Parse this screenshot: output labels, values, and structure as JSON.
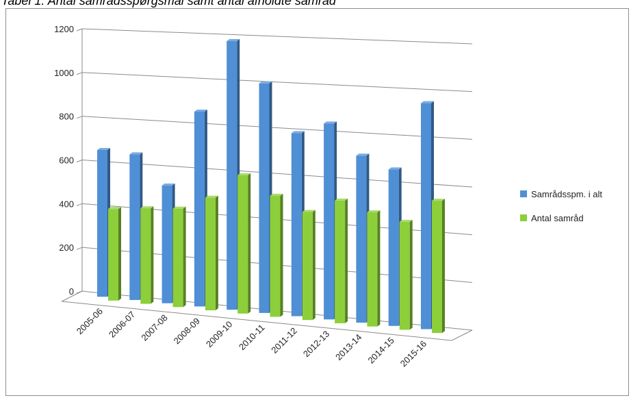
{
  "page": {
    "title": "Tabel 1: Antal samrådsspørgsmål samt antal afholdte samråd"
  },
  "chart_data": {
    "type": "bar",
    "title": "",
    "xlabel": "",
    "ylabel": "",
    "ylim": [
      0,
      1200
    ],
    "yticks": [
      0,
      200,
      400,
      600,
      800,
      1000,
      1200
    ],
    "grid": true,
    "legend_position": "right",
    "categories": [
      "2005-06",
      "2006-07",
      "2007-08",
      "2008-09",
      "2009-10",
      "2010-11",
      "2011-12",
      "2012-13",
      "2013-14",
      "2014-15",
      "2015-16"
    ],
    "series": [
      {
        "name": "Samrådsspm. i alt",
        "color": "#4f8fd6",
        "values": [
          650,
          640,
          510,
          850,
          1170,
          990,
          780,
          830,
          700,
          650,
          940
        ]
      },
      {
        "name": "Antal samråd",
        "color": "#8ccf3a",
        "values": [
          385,
          400,
          410,
          470,
          580,
          500,
          440,
          500,
          460,
          430,
          530
        ]
      }
    ]
  }
}
